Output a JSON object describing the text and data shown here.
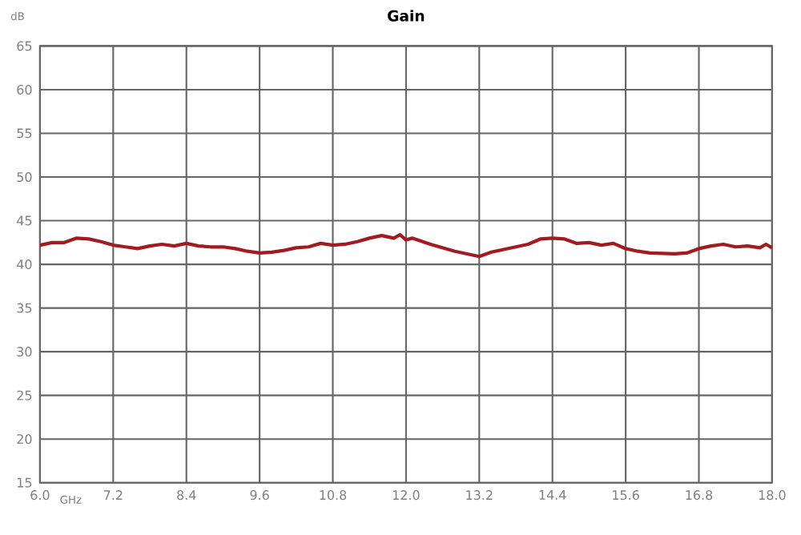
{
  "chart_data": {
    "type": "line",
    "title": "Gain",
    "xlabel": "GHz",
    "ylabel": "dB",
    "xlim": [
      6.0,
      18.0
    ],
    "xticks": [
      {
        "value": 6.0,
        "label": "6.0"
      },
      {
        "value": 7.2,
        "label": "7.2"
      },
      {
        "value": 8.4,
        "label": "8.4"
      },
      {
        "value": 9.6,
        "label": "9.6"
      },
      {
        "value": 10.8,
        "label": "10.8"
      },
      {
        "value": 12.0,
        "label": "12.0"
      },
      {
        "value": 13.2,
        "label": "13.2"
      },
      {
        "value": 14.4,
        "label": "14.4"
      },
      {
        "value": 15.6,
        "label": "15.6"
      },
      {
        "value": 16.8,
        "label": "16.8"
      },
      {
        "value": 18.0,
        "label": "18.0"
      }
    ],
    "ylim": [
      15,
      65
    ],
    "yticks": [
      15,
      20,
      25,
      30,
      35,
      40,
      45,
      50,
      55,
      60,
      65
    ],
    "grid": true,
    "marker": "none",
    "line_style": "solid",
    "series": [
      {
        "color": "#a01c22",
        "x": [
          6.0,
          6.2,
          6.4,
          6.6,
          6.8,
          7.0,
          7.2,
          7.4,
          7.6,
          7.8,
          8.0,
          8.2,
          8.4,
          8.6,
          8.8,
          9.0,
          9.2,
          9.4,
          9.6,
          9.8,
          10.0,
          10.2,
          10.4,
          10.6,
          10.8,
          11.0,
          11.2,
          11.4,
          11.6,
          11.8,
          11.9,
          12.0,
          12.1,
          12.4,
          12.8,
          13.0,
          13.2,
          13.4,
          13.6,
          14.0,
          14.2,
          14.4,
          14.6,
          14.8,
          15.0,
          15.2,
          15.4,
          15.6,
          15.8,
          16.0,
          16.4,
          16.6,
          16.8,
          17.0,
          17.2,
          17.4,
          17.6,
          17.8,
          17.9,
          18.0
        ],
        "values": [
          42.2,
          42.5,
          42.5,
          43.0,
          42.9,
          42.6,
          42.2,
          42.0,
          41.8,
          42.1,
          42.3,
          42.1,
          42.4,
          42.1,
          42.0,
          42.0,
          41.8,
          41.5,
          41.3,
          41.4,
          41.6,
          41.9,
          42.0,
          42.4,
          42.2,
          42.3,
          42.6,
          43.0,
          43.3,
          43.0,
          43.4,
          42.8,
          43.0,
          42.3,
          41.5,
          41.2,
          40.9,
          41.4,
          41.7,
          42.3,
          42.9,
          43.0,
          42.9,
          42.4,
          42.5,
          42.2,
          42.4,
          41.8,
          41.5,
          41.3,
          41.2,
          41.3,
          41.8,
          42.1,
          42.3,
          42.0,
          42.1,
          41.9,
          42.3,
          41.9
        ]
      }
    ]
  }
}
